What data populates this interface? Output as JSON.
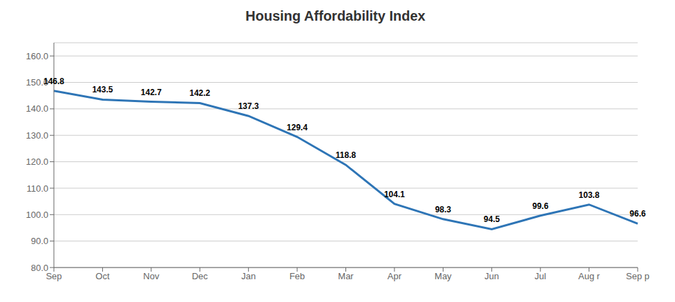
{
  "chart_data": {
    "type": "line",
    "title": "Housing Affordability Index",
    "categories": [
      "Sep",
      "Oct",
      "Nov",
      "Dec",
      "Jan",
      "Feb",
      "Mar",
      "Apr",
      "May",
      "Jun",
      "Jul",
      "Aug r",
      "Sep p"
    ],
    "values": [
      146.8,
      143.5,
      142.7,
      142.2,
      137.3,
      129.4,
      118.8,
      104.1,
      98.3,
      94.5,
      99.6,
      103.8,
      96.6
    ],
    "color": "#2E75B6",
    "ylim": [
      80,
      165
    ],
    "yticks": [
      {
        "value": 80,
        "label": "80.0"
      },
      {
        "value": 90,
        "label": "90.0"
      },
      {
        "value": 100,
        "label": "100.0"
      },
      {
        "value": 110,
        "label": "110.0"
      },
      {
        "value": 120,
        "label": "120.0"
      },
      {
        "value": 130,
        "label": "130.0"
      },
      {
        "value": 140,
        "label": "140.0"
      },
      {
        "value": 150,
        "label": "150.0"
      },
      {
        "value": 160,
        "label": "160.0"
      }
    ],
    "grid": true,
    "data_labels": true
  }
}
